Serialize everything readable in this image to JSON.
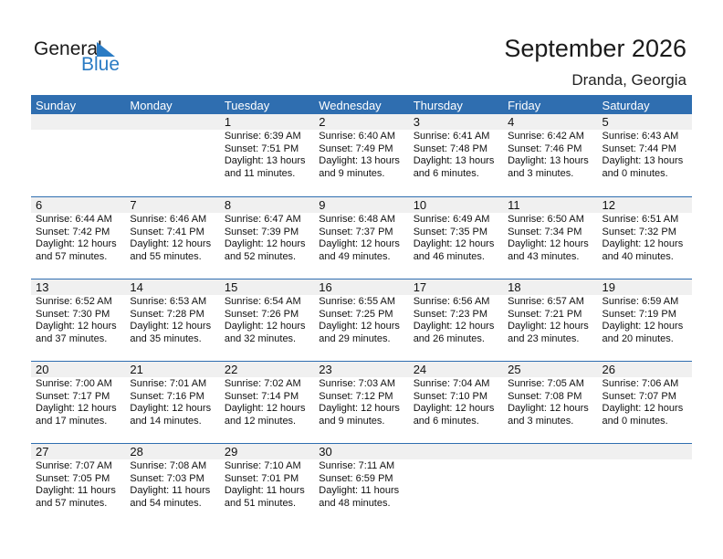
{
  "logo": {
    "general": "General",
    "blue": "Blue"
  },
  "title": "September 2026",
  "location": "Dranda, Georgia",
  "colors": {
    "header": "#2f6eb0",
    "brand": "#2a7bc4"
  },
  "days": [
    "Sunday",
    "Monday",
    "Tuesday",
    "Wednesday",
    "Thursday",
    "Friday",
    "Saturday"
  ],
  "weeks": [
    [
      null,
      null,
      {
        "day": "1",
        "sunrise": "Sunrise: 6:39 AM",
        "sunset": "Sunset: 7:51 PM",
        "daylight1": "Daylight: 13 hours",
        "daylight2": "and 11 minutes."
      },
      {
        "day": "2",
        "sunrise": "Sunrise: 6:40 AM",
        "sunset": "Sunset: 7:49 PM",
        "daylight1": "Daylight: 13 hours",
        "daylight2": "and 9 minutes."
      },
      {
        "day": "3",
        "sunrise": "Sunrise: 6:41 AM",
        "sunset": "Sunset: 7:48 PM",
        "daylight1": "Daylight: 13 hours",
        "daylight2": "and 6 minutes."
      },
      {
        "day": "4",
        "sunrise": "Sunrise: 6:42 AM",
        "sunset": "Sunset: 7:46 PM",
        "daylight1": "Daylight: 13 hours",
        "daylight2": "and 3 minutes."
      },
      {
        "day": "5",
        "sunrise": "Sunrise: 6:43 AM",
        "sunset": "Sunset: 7:44 PM",
        "daylight1": "Daylight: 13 hours",
        "daylight2": "and 0 minutes."
      }
    ],
    [
      {
        "day": "6",
        "sunrise": "Sunrise: 6:44 AM",
        "sunset": "Sunset: 7:42 PM",
        "daylight1": "Daylight: 12 hours",
        "daylight2": "and 57 minutes."
      },
      {
        "day": "7",
        "sunrise": "Sunrise: 6:46 AM",
        "sunset": "Sunset: 7:41 PM",
        "daylight1": "Daylight: 12 hours",
        "daylight2": "and 55 minutes."
      },
      {
        "day": "8",
        "sunrise": "Sunrise: 6:47 AM",
        "sunset": "Sunset: 7:39 PM",
        "daylight1": "Daylight: 12 hours",
        "daylight2": "and 52 minutes."
      },
      {
        "day": "9",
        "sunrise": "Sunrise: 6:48 AM",
        "sunset": "Sunset: 7:37 PM",
        "daylight1": "Daylight: 12 hours",
        "daylight2": "and 49 minutes."
      },
      {
        "day": "10",
        "sunrise": "Sunrise: 6:49 AM",
        "sunset": "Sunset: 7:35 PM",
        "daylight1": "Daylight: 12 hours",
        "daylight2": "and 46 minutes."
      },
      {
        "day": "11",
        "sunrise": "Sunrise: 6:50 AM",
        "sunset": "Sunset: 7:34 PM",
        "daylight1": "Daylight: 12 hours",
        "daylight2": "and 43 minutes."
      },
      {
        "day": "12",
        "sunrise": "Sunrise: 6:51 AM",
        "sunset": "Sunset: 7:32 PM",
        "daylight1": "Daylight: 12 hours",
        "daylight2": "and 40 minutes."
      }
    ],
    [
      {
        "day": "13",
        "sunrise": "Sunrise: 6:52 AM",
        "sunset": "Sunset: 7:30 PM",
        "daylight1": "Daylight: 12 hours",
        "daylight2": "and 37 minutes."
      },
      {
        "day": "14",
        "sunrise": "Sunrise: 6:53 AM",
        "sunset": "Sunset: 7:28 PM",
        "daylight1": "Daylight: 12 hours",
        "daylight2": "and 35 minutes."
      },
      {
        "day": "15",
        "sunrise": "Sunrise: 6:54 AM",
        "sunset": "Sunset: 7:26 PM",
        "daylight1": "Daylight: 12 hours",
        "daylight2": "and 32 minutes."
      },
      {
        "day": "16",
        "sunrise": "Sunrise: 6:55 AM",
        "sunset": "Sunset: 7:25 PM",
        "daylight1": "Daylight: 12 hours",
        "daylight2": "and 29 minutes."
      },
      {
        "day": "17",
        "sunrise": "Sunrise: 6:56 AM",
        "sunset": "Sunset: 7:23 PM",
        "daylight1": "Daylight: 12 hours",
        "daylight2": "and 26 minutes."
      },
      {
        "day": "18",
        "sunrise": "Sunrise: 6:57 AM",
        "sunset": "Sunset: 7:21 PM",
        "daylight1": "Daylight: 12 hours",
        "daylight2": "and 23 minutes."
      },
      {
        "day": "19",
        "sunrise": "Sunrise: 6:59 AM",
        "sunset": "Sunset: 7:19 PM",
        "daylight1": "Daylight: 12 hours",
        "daylight2": "and 20 minutes."
      }
    ],
    [
      {
        "day": "20",
        "sunrise": "Sunrise: 7:00 AM",
        "sunset": "Sunset: 7:17 PM",
        "daylight1": "Daylight: 12 hours",
        "daylight2": "and 17 minutes."
      },
      {
        "day": "21",
        "sunrise": "Sunrise: 7:01 AM",
        "sunset": "Sunset: 7:16 PM",
        "daylight1": "Daylight: 12 hours",
        "daylight2": "and 14 minutes."
      },
      {
        "day": "22",
        "sunrise": "Sunrise: 7:02 AM",
        "sunset": "Sunset: 7:14 PM",
        "daylight1": "Daylight: 12 hours",
        "daylight2": "and 12 minutes."
      },
      {
        "day": "23",
        "sunrise": "Sunrise: 7:03 AM",
        "sunset": "Sunset: 7:12 PM",
        "daylight1": "Daylight: 12 hours",
        "daylight2": "and 9 minutes."
      },
      {
        "day": "24",
        "sunrise": "Sunrise: 7:04 AM",
        "sunset": "Sunset: 7:10 PM",
        "daylight1": "Daylight: 12 hours",
        "daylight2": "and 6 minutes."
      },
      {
        "day": "25",
        "sunrise": "Sunrise: 7:05 AM",
        "sunset": "Sunset: 7:08 PM",
        "daylight1": "Daylight: 12 hours",
        "daylight2": "and 3 minutes."
      },
      {
        "day": "26",
        "sunrise": "Sunrise: 7:06 AM",
        "sunset": "Sunset: 7:07 PM",
        "daylight1": "Daylight: 12 hours",
        "daylight2": "and 0 minutes."
      }
    ],
    [
      {
        "day": "27",
        "sunrise": "Sunrise: 7:07 AM",
        "sunset": "Sunset: 7:05 PM",
        "daylight1": "Daylight: 11 hours",
        "daylight2": "and 57 minutes."
      },
      {
        "day": "28",
        "sunrise": "Sunrise: 7:08 AM",
        "sunset": "Sunset: 7:03 PM",
        "daylight1": "Daylight: 11 hours",
        "daylight2": "and 54 minutes."
      },
      {
        "day": "29",
        "sunrise": "Sunrise: 7:10 AM",
        "sunset": "Sunset: 7:01 PM",
        "daylight1": "Daylight: 11 hours",
        "daylight2": "and 51 minutes."
      },
      {
        "day": "30",
        "sunrise": "Sunrise: 7:11 AM",
        "sunset": "Sunset: 6:59 PM",
        "daylight1": "Daylight: 11 hours",
        "daylight2": "and 48 minutes."
      },
      null,
      null,
      null
    ]
  ]
}
